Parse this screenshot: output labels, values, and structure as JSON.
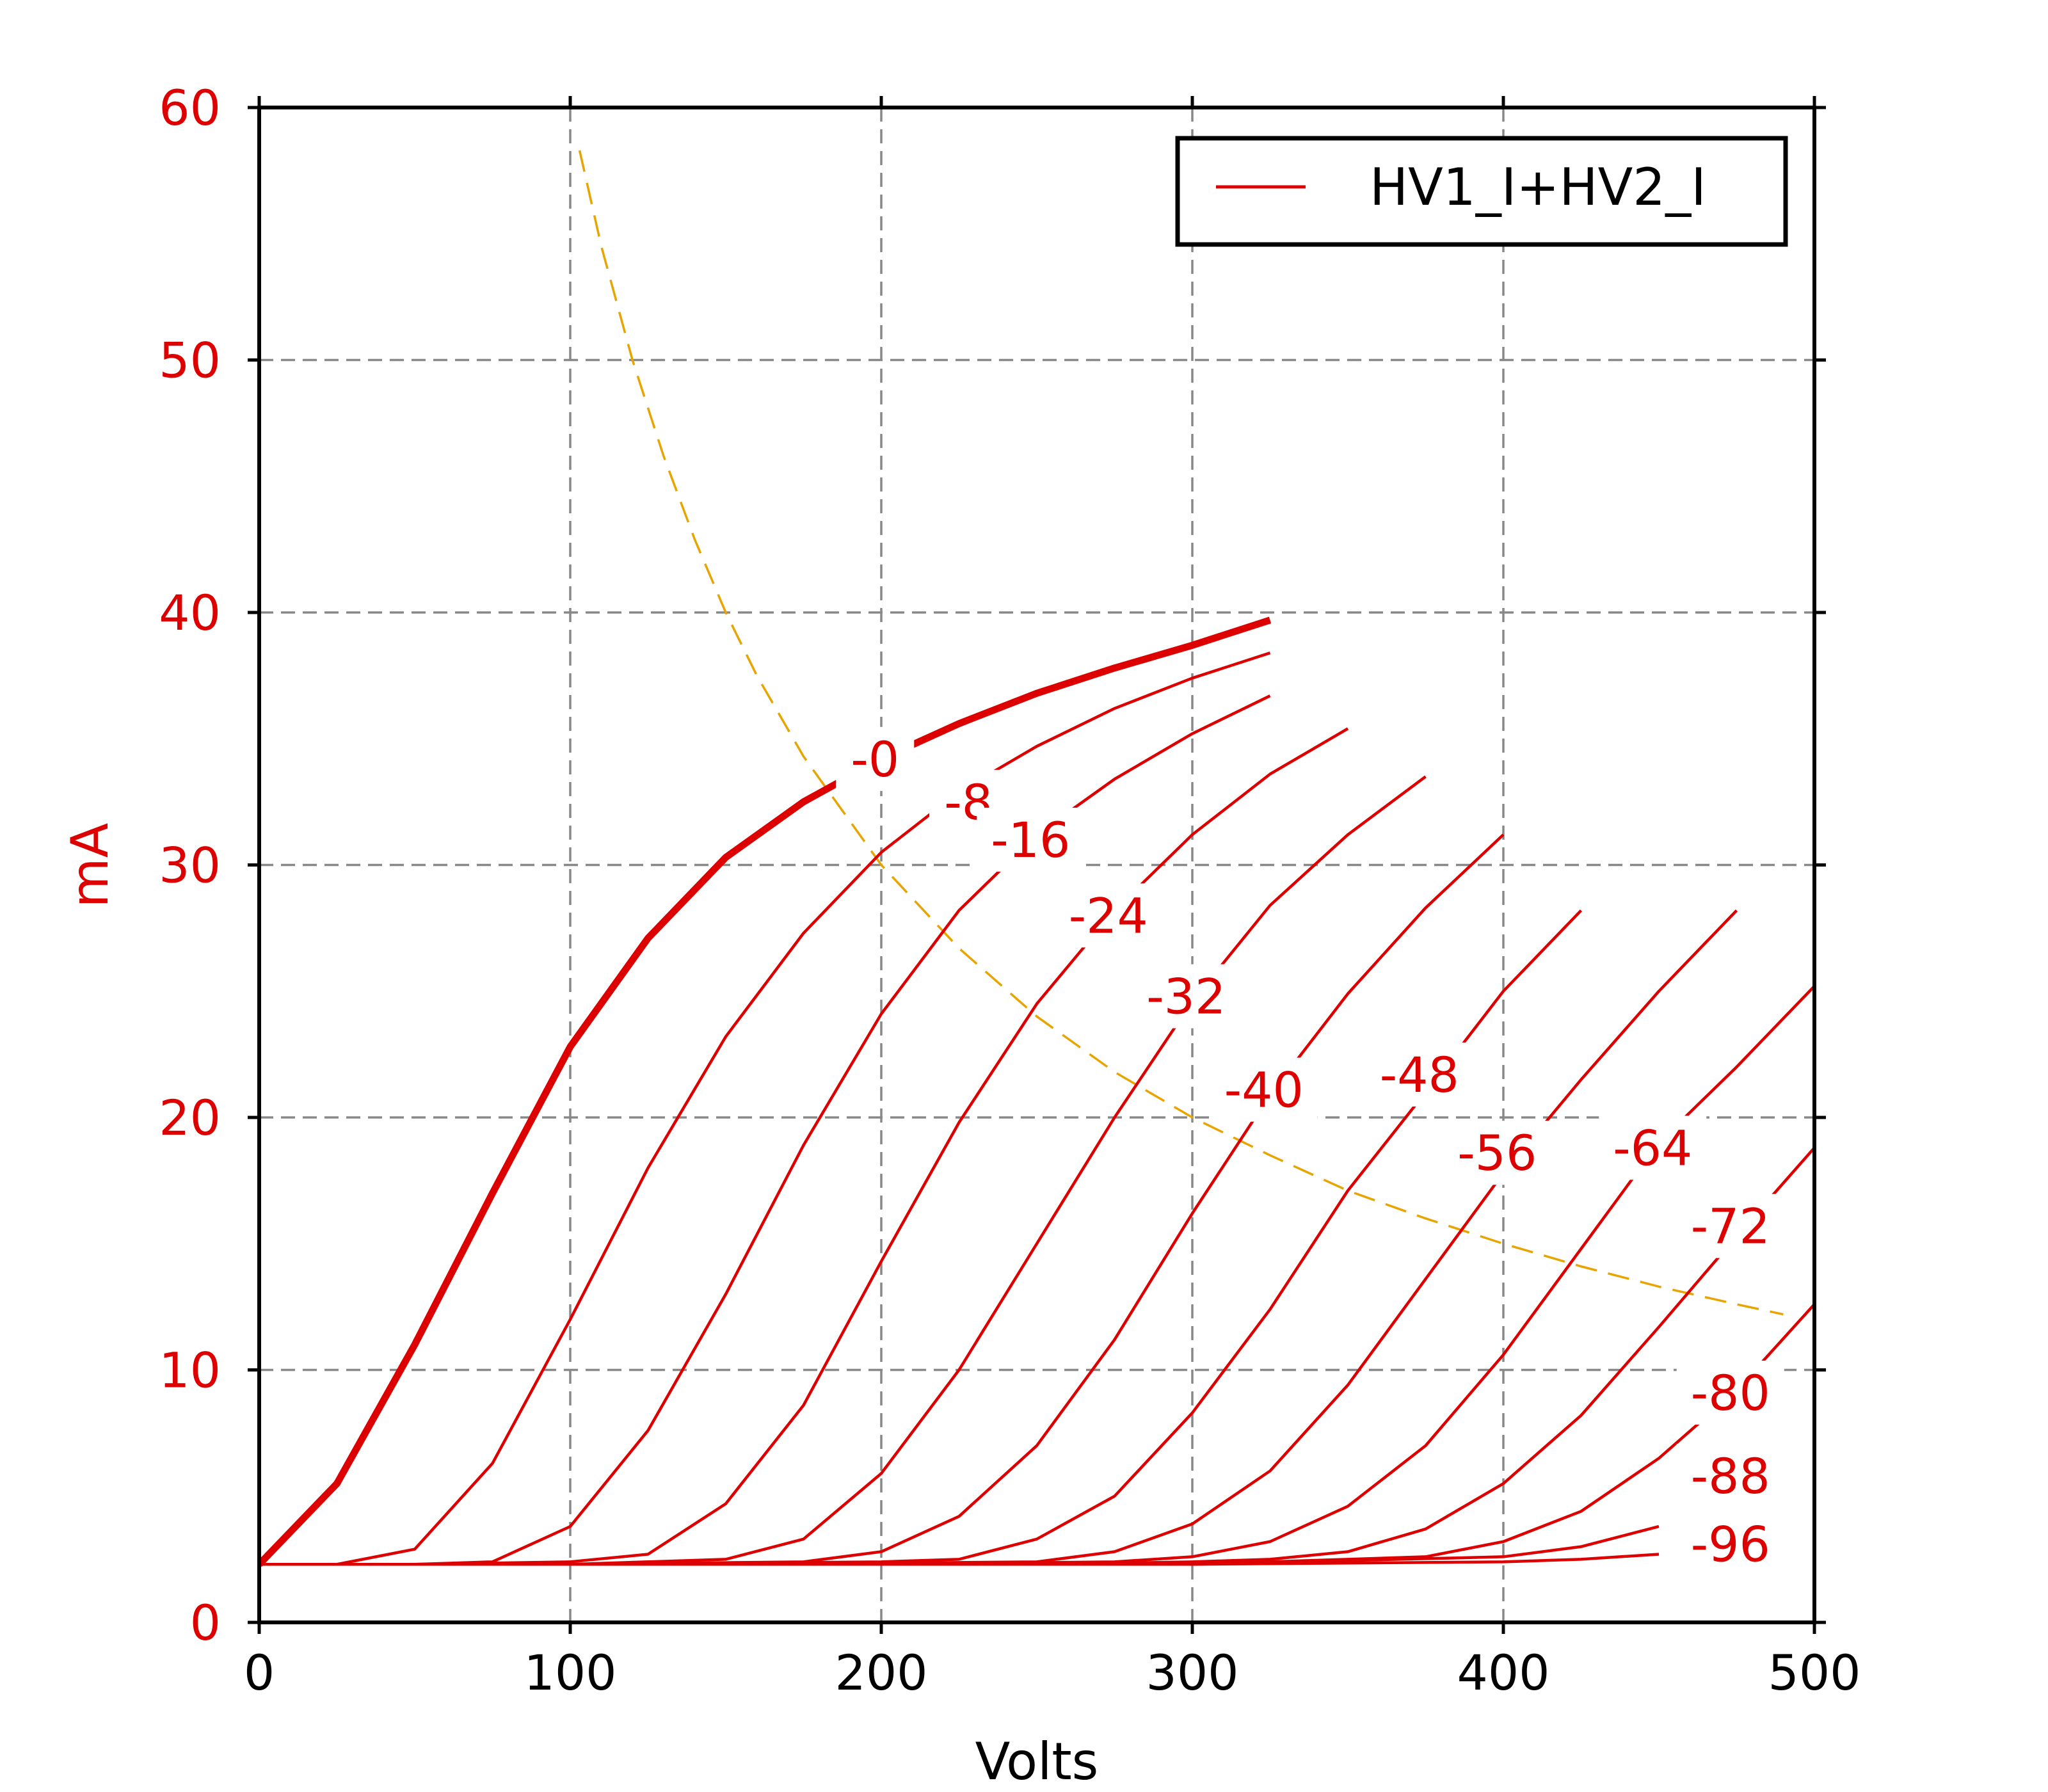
{
  "chart_data": {
    "type": "line",
    "xlabel": "Volts",
    "ylabel": "mA",
    "xlim": [
      0,
      500
    ],
    "ylim": [
      0,
      60
    ],
    "x_ticks": [
      "0",
      "100",
      "200",
      "300",
      "400",
      "500"
    ],
    "y_ticks": [
      "0",
      "10",
      "20",
      "30",
      "40",
      "50",
      "60"
    ],
    "grid": true,
    "legend": {
      "position": "top-right",
      "entries": [
        "HV1_I+HV2_I"
      ]
    },
    "colors": {
      "curves": "#dd0000",
      "dissipation": "#e8a400",
      "grid": "#888888",
      "axis_text": "#dd0000",
      "x_text": "#000000"
    },
    "series": [
      {
        "label": "-0",
        "label_at": [
          198,
          34.2
        ],
        "x": [
          0,
          25,
          50,
          75,
          100,
          125,
          150,
          175,
          200,
          225,
          250,
          275,
          300,
          325
        ],
        "y": [
          2.3,
          5.5,
          11,
          17,
          22.8,
          27.1,
          30.3,
          32.5,
          34.2,
          35.6,
          36.8,
          37.8,
          38.7,
          39.7
        ]
      },
      {
        "label": "-8",
        "label_at": [
          228,
          32.5
        ],
        "x": [
          0,
          25,
          50,
          75,
          100,
          125,
          150,
          175,
          200,
          225,
          250,
          275,
          300,
          325
        ],
        "y": [
          2.3,
          2.3,
          2.9,
          6.3,
          12,
          18,
          23.2,
          27.3,
          30.5,
          32.9,
          34.7,
          36.2,
          37.4,
          38.4
        ]
      },
      {
        "label": "-16",
        "label_at": [
          248,
          31
        ],
        "x": [
          0,
          25,
          50,
          75,
          100,
          125,
          150,
          175,
          200,
          225,
          250,
          275,
          300,
          325
        ],
        "y": [
          2.3,
          2.3,
          2.3,
          2.4,
          3.8,
          7.6,
          13,
          18.9,
          24.1,
          28.2,
          31.2,
          33.4,
          35.2,
          36.7
        ]
      },
      {
        "label": "-24",
        "label_at": [
          273,
          28
        ],
        "x": [
          0,
          50,
          100,
          125,
          150,
          175,
          200,
          225,
          250,
          275,
          300,
          325,
          350
        ],
        "y": [
          2.3,
          2.3,
          2.4,
          2.7,
          4.7,
          8.6,
          14.3,
          19.8,
          24.5,
          28.2,
          31.2,
          33.6,
          35.4
        ]
      },
      {
        "label": "-32",
        "label_at": [
          298,
          24.8
        ],
        "x": [
          0,
          50,
          100,
          150,
          175,
          200,
          225,
          250,
          275,
          300,
          325,
          350,
          375
        ],
        "y": [
          2.3,
          2.3,
          2.3,
          2.5,
          3.3,
          5.9,
          10,
          15,
          20,
          24.6,
          28.4,
          31.2,
          33.5
        ]
      },
      {
        "label": "-40",
        "label_at": [
          323,
          21.1
        ],
        "x": [
          0,
          100,
          175,
          200,
          225,
          250,
          275,
          300,
          325,
          350,
          375,
          400
        ],
        "y": [
          2.3,
          2.3,
          2.4,
          2.8,
          4.2,
          7.0,
          11.2,
          16.2,
          20.9,
          24.9,
          28.3,
          31.2
        ]
      },
      {
        "label": "-48",
        "label_at": [
          373,
          21.7
        ],
        "x": [
          0,
          100,
          200,
          225,
          250,
          275,
          300,
          325,
          350,
          375,
          400,
          425
        ],
        "y": [
          2.3,
          2.3,
          2.4,
          2.5,
          3.3,
          5.0,
          8.3,
          12.4,
          17.1,
          21.0,
          25.0,
          28.2
        ]
      },
      {
        "label": "-56",
        "label_at": [
          398,
          18.6
        ],
        "x": [
          0,
          150,
          250,
          275,
          300,
          325,
          350,
          375,
          400,
          425,
          450,
          475
        ],
        "y": [
          2.3,
          2.3,
          2.4,
          2.8,
          3.9,
          6.0,
          9.4,
          13.6,
          17.8,
          21.5,
          25.0,
          28.2
        ]
      },
      {
        "label": "-64",
        "label_at": [
          448,
          18.8
        ],
        "x": [
          0,
          200,
          275,
          300,
          325,
          350,
          375,
          400,
          425,
          450,
          475,
          500
        ],
        "y": [
          2.3,
          2.3,
          2.4,
          2.6,
          3.2,
          4.6,
          7.0,
          10.6,
          14.8,
          19.0,
          22.0,
          25.2
        ]
      },
      {
        "label": "-72",
        "label_at": [
          473,
          15.7
        ],
        "x": [
          0,
          250,
          300,
          325,
          350,
          375,
          400,
          425,
          450,
          475,
          500
        ],
        "y": [
          2.3,
          2.3,
          2.4,
          2.5,
          2.8,
          3.7,
          5.5,
          8.2,
          11.7,
          15.3,
          18.8
        ]
      },
      {
        "label": "-80",
        "label_at": [
          473,
          9.1
        ],
        "x": [
          0,
          300,
          350,
          375,
          400,
          425,
          450,
          475,
          500
        ],
        "y": [
          2.3,
          2.3,
          2.5,
          2.6,
          3.2,
          4.4,
          6.5,
          9.2,
          12.6
        ]
      },
      {
        "label": "-88",
        "label_at": [
          473,
          5.8
        ],
        "x": [
          0,
          300,
          400,
          425,
          450
        ],
        "y": [
          2.3,
          2.3,
          2.6,
          3.0,
          3.8
        ]
      },
      {
        "label": "-96",
        "label_at": [
          473,
          3.1
        ],
        "x": [
          0,
          300,
          400,
          425,
          450
        ],
        "y": [
          2.3,
          2.3,
          2.4,
          2.5,
          2.7
        ]
      }
    ],
    "dissipation_curve": {
      "x": [
        103,
        110,
        120,
        130,
        140,
        150,
        160,
        175,
        200,
        225,
        250,
        275,
        300,
        325,
        350,
        375,
        400,
        425,
        450,
        475,
        490
      ],
      "y": [
        58.3,
        54.5,
        50,
        46.2,
        42.9,
        40,
        37.5,
        34.3,
        30,
        26.7,
        24,
        21.8,
        20,
        18.5,
        17.1,
        16,
        15,
        14.1,
        13.3,
        12.6,
        12.2
      ]
    }
  }
}
